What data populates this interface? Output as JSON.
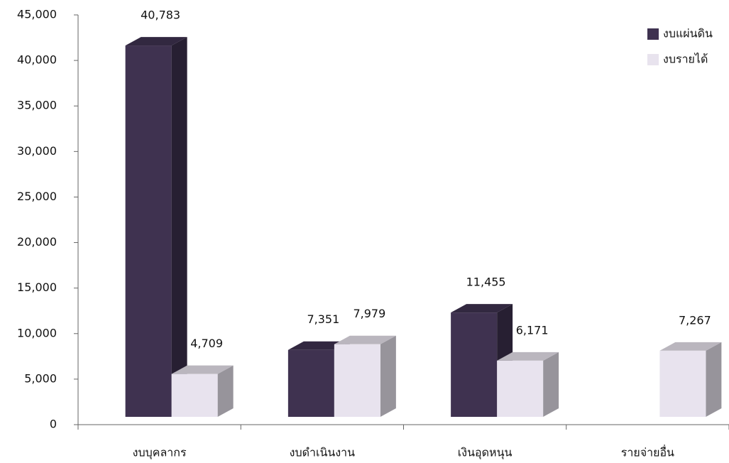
{
  "chart_data": {
    "type": "bar",
    "categories": [
      "งบบุคลากร",
      "งบดำเนินงาน",
      "เงินอุดหนุน",
      "รายจ่ายอื่น"
    ],
    "series": [
      {
        "name": "งบแผ่นดิน",
        "color": "#3f3250",
        "values": [
          40783,
          7351,
          11455,
          null
        ],
        "value_labels": [
          "40,783",
          "7,351",
          "11,455",
          null
        ]
      },
      {
        "name": "งบรายได้",
        "color": "#e8e3ee",
        "values": [
          4709,
          7979,
          6171,
          7267
        ],
        "value_labels": [
          "4,709",
          "7,979",
          "6,171",
          "7,267"
        ]
      }
    ],
    "ylim": [
      0,
      45000
    ],
    "yticks": [
      0,
      {
        "value": 5000,
        "label": "5,000"
      },
      {
        "value": 10000,
        "label": "10,000"
      },
      {
        "value": 15000,
        "label": "15,000"
      },
      {
        "value": 20000,
        "label": "20,000"
      },
      {
        "value": 25000,
        "label": "25,000"
      },
      {
        "value": 30000,
        "label": "30,000"
      },
      {
        "value": 35000,
        "label": "35,000"
      },
      {
        "value": 40000,
        "label": "40,000"
      },
      {
        "value": 45000,
        "label": "45,000"
      }
    ],
    "legend": "top-right"
  }
}
